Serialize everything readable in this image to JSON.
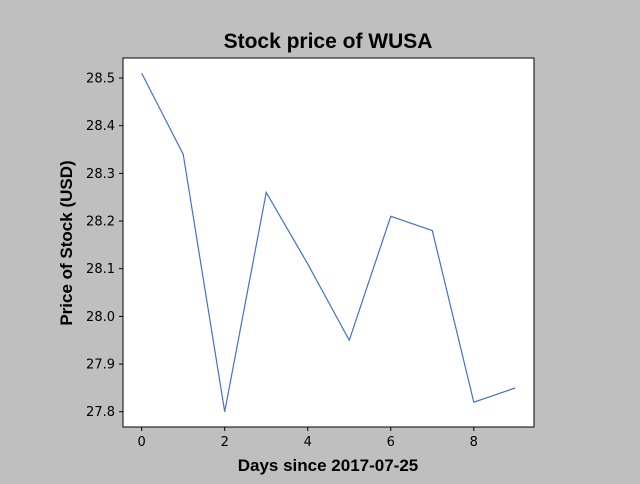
{
  "chart_data": {
    "type": "line",
    "title": "Stock price of WUSA",
    "xlabel": "Days since 2017-07-25",
    "ylabel": "Price of Stock (USD)",
    "xlim": [
      -0.45,
      9.45
    ],
    "ylim": [
      27.768,
      28.542
    ],
    "xticks": [
      0,
      2,
      4,
      6,
      8
    ],
    "yticks": [
      27.8,
      27.9,
      28.0,
      28.1,
      28.2,
      28.3,
      28.4,
      28.5
    ],
    "grid": false,
    "legend": "none",
    "series": [
      {
        "color": "#4472c4",
        "x": [
          0,
          1,
          2,
          3,
          4,
          5,
          6,
          7,
          8,
          9
        ],
        "y": [
          28.51,
          28.34,
          27.8,
          28.26,
          28.11,
          27.95,
          28.21,
          28.18,
          27.82,
          27.85
        ]
      }
    ]
  },
  "colors": {
    "background": "#bfbfbf",
    "plot_background": "#ffffff",
    "line": "#4472c4"
  }
}
